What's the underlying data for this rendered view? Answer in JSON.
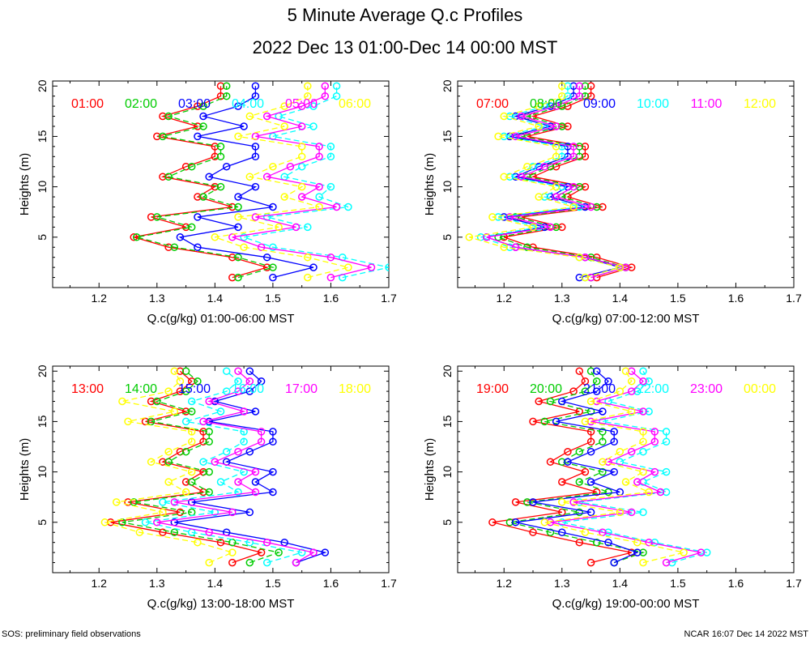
{
  "figure": {
    "title": "5 Minute Average Q.c Profiles",
    "subtitle": "2022 Dec 13 01:00-Dec 14 00:00 MST",
    "footer_left": "SOS: preliminary field observations",
    "footer_right": "NCAR 16:07 Dec 14 2022 MST"
  },
  "colors": {
    "red": "#ff0000",
    "green": "#00cc00",
    "blue": "#0000ff",
    "cyan": "#00ffff",
    "magenta": "#ff00ff",
    "yellow": "#ffff00"
  },
  "chart_data": [
    {
      "type": "line",
      "xlabel": "Q.c(g/kg) 01:00-06:00 MST",
      "ylabel": "Heights (m)",
      "xlim": [
        1.12,
        1.7
      ],
      "ylim": [
        0,
        20.5
      ],
      "xticks": [
        1.2,
        1.3,
        1.4,
        1.5,
        1.6,
        1.7
      ],
      "yticks": [
        5,
        10,
        15,
        20
      ],
      "y": [
        1,
        2,
        3,
        4,
        5,
        6,
        7,
        8,
        9,
        10,
        11,
        12,
        13,
        14,
        15,
        16,
        17,
        18,
        19,
        20
      ],
      "series": [
        {
          "name": "01:00",
          "color": "#ff0000",
          "values": [
            1.43,
            1.49,
            1.43,
            1.32,
            1.26,
            1.35,
            1.29,
            1.43,
            1.37,
            1.4,
            1.31,
            1.35,
            1.4,
            1.4,
            1.3,
            1.37,
            1.31,
            1.37,
            1.41,
            1.41
          ]
        },
        {
          "name": "02:00",
          "color": "#00cc00",
          "values": [
            1.44,
            1.5,
            1.44,
            1.33,
            1.265,
            1.36,
            1.3,
            1.44,
            1.38,
            1.41,
            1.32,
            1.36,
            1.41,
            1.41,
            1.31,
            1.38,
            1.32,
            1.38,
            1.42,
            1.42
          ]
        },
        {
          "name": "03:00",
          "color": "#0000ff",
          "values": [
            1.5,
            1.57,
            1.49,
            1.37,
            1.34,
            1.44,
            1.37,
            1.5,
            1.44,
            1.47,
            1.39,
            1.42,
            1.47,
            1.47,
            1.37,
            1.45,
            1.38,
            1.44,
            1.47,
            1.47
          ]
        },
        {
          "name": "04:00",
          "color": "#00ffff",
          "values": [
            1.62,
            1.7,
            1.62,
            1.5,
            1.45,
            1.56,
            1.49,
            1.63,
            1.58,
            1.6,
            1.52,
            1.55,
            1.6,
            1.6,
            1.5,
            1.57,
            1.51,
            1.57,
            1.61,
            1.61
          ]
        },
        {
          "name": "05:00",
          "color": "#ff00ff",
          "values": [
            1.6,
            1.67,
            1.6,
            1.48,
            1.43,
            1.54,
            1.47,
            1.61,
            1.55,
            1.58,
            1.49,
            1.53,
            1.58,
            1.58,
            1.47,
            1.55,
            1.49,
            1.55,
            1.59,
            1.59
          ]
        },
        {
          "name": "06:00",
          "color": "#ffff00",
          "values": [
            1.56,
            1.63,
            1.56,
            1.45,
            1.4,
            1.51,
            1.44,
            1.58,
            1.52,
            1.55,
            1.46,
            1.5,
            1.55,
            1.55,
            1.44,
            1.52,
            1.46,
            1.52,
            1.56,
            1.56
          ]
        }
      ]
    },
    {
      "type": "line",
      "xlabel": "Q.c(g/kg) 07:00-12:00 MST",
      "ylabel": "Heights (m)",
      "xlim": [
        1.12,
        1.7
      ],
      "ylim": [
        0,
        20.5
      ],
      "xticks": [
        1.2,
        1.3,
        1.4,
        1.5,
        1.6,
        1.7
      ],
      "yticks": [
        5,
        10,
        15,
        20
      ],
      "y": [
        1,
        2,
        3,
        4,
        5,
        6,
        7,
        8,
        9,
        10,
        11,
        12,
        13,
        14,
        15,
        16,
        17,
        18,
        19,
        20
      ],
      "series": [
        {
          "name": "07:00",
          "color": "#ff0000",
          "values": [
            1.36,
            1.42,
            1.36,
            1.25,
            1.2,
            1.3,
            1.23,
            1.37,
            1.31,
            1.34,
            1.25,
            1.29,
            1.34,
            1.34,
            1.24,
            1.31,
            1.25,
            1.31,
            1.35,
            1.35
          ]
        },
        {
          "name": "08:00",
          "color": "#00cc00",
          "values": [
            1.35,
            1.41,
            1.35,
            1.24,
            1.19,
            1.29,
            1.22,
            1.36,
            1.3,
            1.33,
            1.24,
            1.28,
            1.33,
            1.33,
            1.23,
            1.3,
            1.24,
            1.3,
            1.34,
            1.34
          ]
        },
        {
          "name": "09:00",
          "color": "#0000ff",
          "values": [
            1.33,
            1.4,
            1.34,
            1.22,
            1.17,
            1.27,
            1.2,
            1.34,
            1.28,
            1.31,
            1.22,
            1.26,
            1.31,
            1.31,
            1.21,
            1.28,
            1.22,
            1.28,
            1.32,
            1.32
          ]
        },
        {
          "name": "10:00",
          "color": "#00ffff",
          "values": [
            1.34,
            1.4,
            1.33,
            1.21,
            1.16,
            1.26,
            1.19,
            1.33,
            1.27,
            1.3,
            1.21,
            1.25,
            1.3,
            1.3,
            1.2,
            1.27,
            1.21,
            1.27,
            1.31,
            1.31
          ]
        },
        {
          "name": "11:00",
          "color": "#ff00ff",
          "values": [
            1.35,
            1.41,
            1.34,
            1.22,
            1.17,
            1.28,
            1.21,
            1.35,
            1.29,
            1.32,
            1.23,
            1.27,
            1.32,
            1.32,
            1.22,
            1.29,
            1.23,
            1.29,
            1.33,
            1.33
          ]
        },
        {
          "name": "12:00",
          "color": "#ffff00",
          "values": [
            1.34,
            1.4,
            1.33,
            1.2,
            1.14,
            1.25,
            1.18,
            1.32,
            1.26,
            1.29,
            1.2,
            1.24,
            1.29,
            1.29,
            1.19,
            1.26,
            1.2,
            1.26,
            1.3,
            1.3
          ]
        }
      ]
    },
    {
      "type": "line",
      "xlabel": "Q.c(g/kg) 13:00-18:00 MST",
      "ylabel": "Heights (m)",
      "xlim": [
        1.12,
        1.7
      ],
      "ylim": [
        0,
        20.5
      ],
      "xticks": [
        1.2,
        1.3,
        1.4,
        1.5,
        1.6,
        1.7
      ],
      "yticks": [
        5,
        10,
        15,
        20
      ],
      "y": [
        1,
        2,
        3,
        4,
        5,
        6,
        7,
        8,
        9,
        10,
        11,
        12,
        13,
        14,
        15,
        16,
        17,
        18,
        19,
        20
      ],
      "series": [
        {
          "name": "13:00",
          "color": "#ff0000",
          "values": [
            1.43,
            1.48,
            1.41,
            1.31,
            1.22,
            1.34,
            1.25,
            1.38,
            1.35,
            1.38,
            1.31,
            1.34,
            1.38,
            1.38,
            1.28,
            1.35,
            1.29,
            1.34,
            1.36,
            1.34
          ]
        },
        {
          "name": "14:00",
          "color": "#00cc00",
          "values": [
            1.46,
            1.51,
            1.43,
            1.33,
            1.24,
            1.36,
            1.26,
            1.39,
            1.36,
            1.39,
            1.32,
            1.35,
            1.39,
            1.39,
            1.29,
            1.36,
            1.3,
            1.35,
            1.37,
            1.35
          ]
        },
        {
          "name": "15:00",
          "color": "#0000ff",
          "values": [
            1.54,
            1.59,
            1.52,
            1.42,
            1.33,
            1.46,
            1.36,
            1.5,
            1.47,
            1.5,
            1.42,
            1.46,
            1.5,
            1.5,
            1.39,
            1.47,
            1.4,
            1.46,
            1.48,
            1.46
          ]
        },
        {
          "name": "16:00",
          "color": "#00ffff",
          "values": [
            1.49,
            1.55,
            1.46,
            1.36,
            1.28,
            1.4,
            1.31,
            1.44,
            1.41,
            1.45,
            1.38,
            1.42,
            1.45,
            1.45,
            1.35,
            1.41,
            1.36,
            1.42,
            1.44,
            1.42
          ]
        },
        {
          "name": "17:00",
          "color": "#ff00ff",
          "values": [
            1.54,
            1.57,
            1.49,
            1.39,
            1.3,
            1.43,
            1.33,
            1.47,
            1.44,
            1.47,
            1.4,
            1.44,
            1.48,
            1.48,
            1.38,
            1.45,
            1.39,
            1.44,
            1.46,
            1.44
          ]
        },
        {
          "name": "18:00",
          "color": "#ffff00",
          "values": [
            1.39,
            1.43,
            1.37,
            1.27,
            1.21,
            1.31,
            1.23,
            1.35,
            1.32,
            1.36,
            1.29,
            1.32,
            1.36,
            1.36,
            1.25,
            1.33,
            1.24,
            1.32,
            1.34,
            1.33
          ]
        }
      ]
    },
    {
      "type": "line",
      "xlabel": "Q.c(g/kg) 19:00-00:00 MST",
      "ylabel": "Heights (m)",
      "xlim": [
        1.12,
        1.7
      ],
      "ylim": [
        0,
        20.5
      ],
      "xticks": [
        1.2,
        1.3,
        1.4,
        1.5,
        1.6,
        1.7
      ],
      "yticks": [
        5,
        10,
        15,
        20
      ],
      "y": [
        1,
        2,
        3,
        4,
        5,
        6,
        7,
        8,
        9,
        10,
        11,
        12,
        13,
        14,
        15,
        16,
        17,
        18,
        19,
        20
      ],
      "series": [
        {
          "name": "19:00",
          "color": "#ff0000",
          "values": [
            1.35,
            1.42,
            1.33,
            1.25,
            1.18,
            1.3,
            1.22,
            1.36,
            1.3,
            1.34,
            1.28,
            1.31,
            1.35,
            1.35,
            1.25,
            1.33,
            1.26,
            1.32,
            1.34,
            1.33
          ]
        },
        {
          "name": "20:00",
          "color": "#00cc00",
          "values": [
            1.39,
            1.44,
            1.36,
            1.28,
            1.21,
            1.33,
            1.24,
            1.38,
            1.33,
            1.37,
            1.3,
            1.33,
            1.37,
            1.37,
            1.27,
            1.35,
            1.28,
            1.34,
            1.36,
            1.35
          ]
        },
        {
          "name": "21:00",
          "color": "#0000ff",
          "values": [
            1.39,
            1.43,
            1.38,
            1.3,
            1.22,
            1.35,
            1.25,
            1.4,
            1.35,
            1.39,
            1.31,
            1.35,
            1.39,
            1.39,
            1.29,
            1.37,
            1.3,
            1.36,
            1.38,
            1.36
          ]
        },
        {
          "name": "22:00",
          "color": "#00ffff",
          "values": [
            1.49,
            1.55,
            1.46,
            1.38,
            1.3,
            1.44,
            1.33,
            1.48,
            1.44,
            1.48,
            1.4,
            1.44,
            1.48,
            1.48,
            1.37,
            1.45,
            1.38,
            1.43,
            1.45,
            1.44
          ]
        },
        {
          "name": "23:00",
          "color": "#ff00ff",
          "values": [
            1.48,
            1.54,
            1.45,
            1.37,
            1.28,
            1.42,
            1.32,
            1.47,
            1.43,
            1.46,
            1.38,
            1.42,
            1.46,
            1.46,
            1.35,
            1.44,
            1.36,
            1.42,
            1.44,
            1.42
          ]
        },
        {
          "name": "00:00",
          "color": "#ffff00",
          "values": [
            1.44,
            1.51,
            1.43,
            1.34,
            1.27,
            1.4,
            1.3,
            1.45,
            1.41,
            1.44,
            1.37,
            1.4,
            1.44,
            1.44,
            1.34,
            1.42,
            1.35,
            1.4,
            1.42,
            1.41
          ]
        }
      ]
    }
  ]
}
